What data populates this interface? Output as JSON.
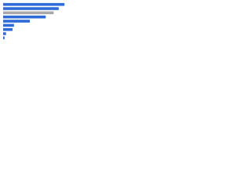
{
  "chart_data": {
    "type": "bar",
    "orientation": "horizontal",
    "categories": [
      null,
      null,
      null,
      null,
      null,
      null,
      null,
      null,
      null
    ],
    "values": [
      85,
      77,
      70,
      59,
      37,
      15,
      13,
      4,
      2
    ],
    "colors": [
      "#2e6bd6",
      "#2e6bd6",
      "#a8a8a8",
      "#2e6bd6",
      "#2e6bd6",
      "#2e6bd6",
      "#2e6bd6",
      "#2e6bd6",
      "#2e6bd6"
    ],
    "xlim": [
      0,
      100
    ]
  }
}
